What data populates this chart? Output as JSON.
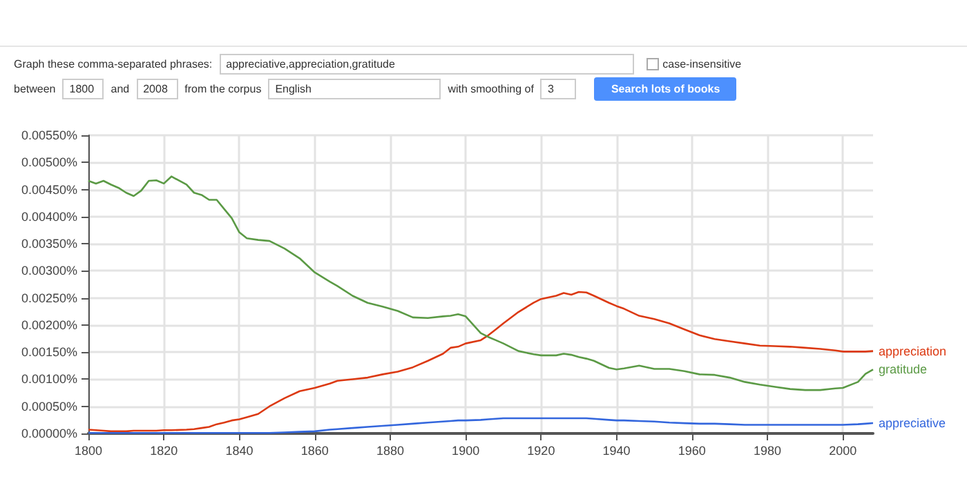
{
  "chart_data": {
    "type": "line",
    "annotations": [
      "Graph these comma-separated phrases:",
      "appreciative,appreciation,gratitude",
      "case-insensitive",
      "between",
      "1800",
      "and",
      "2008",
      "from the corpus",
      "English",
      "with smoothing of",
      "3",
      "Search lots of books"
    ],
    "x": [
      1800,
      1802,
      1804,
      1806,
      1808,
      1810,
      1812,
      1814,
      1816,
      1818,
      1820,
      1822,
      1826,
      1828,
      1830,
      1832,
      1834,
      1836,
      1838,
      1840,
      1842,
      1845,
      1848,
      1852,
      1856,
      1860,
      1864,
      1866,
      1870,
      1874,
      1878,
      1882,
      1886,
      1890,
      1894,
      1896,
      1898,
      1900,
      1904,
      1906,
      1908,
      1910,
      1914,
      1918,
      1920,
      1924,
      1926,
      1928,
      1930,
      1932,
      1934,
      1938,
      1940,
      1942,
      1946,
      1950,
      1954,
      1958,
      1962,
      1966,
      1970,
      1974,
      1978,
      1982,
      1986,
      1990,
      1994,
      1998,
      2000,
      2004,
      2006,
      2008
    ],
    "series": [
      {
        "name": "appreciation",
        "color": "#dc3912",
        "values": [
          7e-05,
          6e-05,
          5e-05,
          4e-05,
          4e-05,
          4e-05,
          5e-05,
          5e-05,
          5e-05,
          5e-05,
          6e-05,
          6e-05,
          7e-05,
          8e-05,
          0.0001,
          0.00012,
          0.00017,
          0.0002,
          0.00024,
          0.00026,
          0.0003,
          0.00036,
          0.0005,
          0.00065,
          0.00078,
          0.00084,
          0.00092,
          0.00097,
          0.001,
          0.00103,
          0.00109,
          0.00114,
          0.00122,
          0.00134,
          0.00147,
          0.00158,
          0.0016,
          0.00166,
          0.00172,
          0.00181,
          0.00192,
          0.00203,
          0.00224,
          0.00241,
          0.00248,
          0.00254,
          0.00259,
          0.00256,
          0.00261,
          0.0026,
          0.00254,
          0.00241,
          0.00235,
          0.0023,
          0.00217,
          0.00211,
          0.00203,
          0.00192,
          0.00181,
          0.00174,
          0.0017,
          0.00166,
          0.00162,
          0.00161,
          0.0016,
          0.00158,
          0.00156,
          0.00153,
          0.00151,
          0.00151,
          0.00151,
          0.00152
        ]
      },
      {
        "name": "gratitude",
        "color": "#5b9a45",
        "values": [
          0.00466,
          0.00461,
          0.00466,
          0.00459,
          0.00453,
          0.00444,
          0.00438,
          0.00448,
          0.00466,
          0.00467,
          0.00461,
          0.00474,
          0.00459,
          0.00444,
          0.0044,
          0.00431,
          0.00431,
          0.00414,
          0.00397,
          0.00371,
          0.0036,
          0.00357,
          0.00355,
          0.00341,
          0.00323,
          0.00297,
          0.0028,
          0.00272,
          0.00254,
          0.00241,
          0.00234,
          0.00226,
          0.00214,
          0.00213,
          0.00216,
          0.00217,
          0.0022,
          0.00216,
          0.00185,
          0.00178,
          0.00172,
          0.00166,
          0.00152,
          0.00146,
          0.00144,
          0.00144,
          0.00147,
          0.00145,
          0.00141,
          0.00138,
          0.00134,
          0.00121,
          0.00118,
          0.0012,
          0.00125,
          0.00119,
          0.00119,
          0.00115,
          0.00109,
          0.00108,
          0.00103,
          0.00095,
          0.0009,
          0.00086,
          0.00082,
          0.0008,
          0.0008,
          0.00083,
          0.00084,
          0.00095,
          0.0011,
          0.00118
        ]
      },
      {
        "name": "appreciative",
        "color": "#3366dd",
        "values": [
          1e-05,
          1e-05,
          1e-05,
          1e-05,
          1e-05,
          1e-05,
          1e-05,
          1e-05,
          1e-05,
          1e-05,
          1e-05,
          1e-05,
          1e-05,
          1e-05,
          1e-05,
          1e-05,
          1e-05,
          1e-05,
          1e-05,
          1e-05,
          1e-05,
          1e-05,
          1e-05,
          2e-05,
          3e-05,
          4e-05,
          7e-05,
          8e-05,
          0.0001,
          0.00012,
          0.00014,
          0.00016,
          0.00018,
          0.0002,
          0.00022,
          0.00023,
          0.00024,
          0.00024,
          0.00025,
          0.00026,
          0.00027,
          0.00028,
          0.00028,
          0.00028,
          0.00028,
          0.00028,
          0.00028,
          0.00028,
          0.00028,
          0.00028,
          0.00027,
          0.00025,
          0.00024,
          0.00024,
          0.00023,
          0.00022,
          0.0002,
          0.00019,
          0.00018,
          0.00018,
          0.00017,
          0.00016,
          0.00016,
          0.00016,
          0.00016,
          0.00016,
          0.00016,
          0.00016,
          0.00016,
          0.00017,
          0.00018,
          0.00019
        ]
      }
    ],
    "xlim": [
      1800,
      2008
    ],
    "xticks": [
      1800,
      1820,
      1840,
      1860,
      1880,
      1900,
      1920,
      1940,
      1960,
      1980,
      2000
    ],
    "ylim": [
      0,
      0.0055
    ],
    "yticks": [
      {
        "value": 0,
        "label": "0.00000%"
      },
      {
        "value": 0.0005,
        "label": "0.00050%"
      },
      {
        "value": 0.001,
        "label": "0.00100%"
      },
      {
        "value": 0.0015,
        "label": "0.00150%"
      },
      {
        "value": 0.002,
        "label": "0.00200%"
      },
      {
        "value": 0.0025,
        "label": "0.00250%"
      },
      {
        "value": 0.003,
        "label": "0.00300%"
      },
      {
        "value": 0.0035,
        "label": "0.00350%"
      },
      {
        "value": 0.004,
        "label": "0.00400%"
      },
      {
        "value": 0.0045,
        "label": "0.00450%"
      },
      {
        "value": 0.005,
        "label": "0.00500%"
      },
      {
        "value": 0.0055,
        "label": "0.00550%"
      }
    ],
    "grid": true,
    "legend": false,
    "marker": "none",
    "line_style": "solid"
  }
}
